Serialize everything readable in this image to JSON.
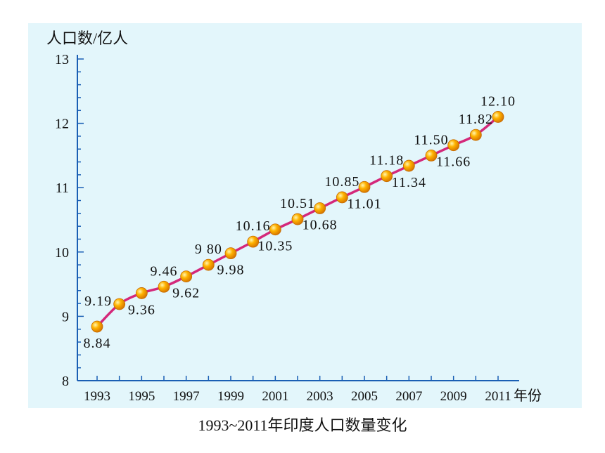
{
  "caption": "1993~2011年印度人口数量变化",
  "colors": {
    "background": "#e3f6fb",
    "axis": "#1a5fb4",
    "line": "#d4287a",
    "marker": "#f5a300",
    "text": "#111111"
  },
  "chart_data": {
    "type": "line",
    "title": "",
    "xlabel": "年份",
    "ylabel": "人口数/亿人",
    "xlim": [
      1993,
      2011
    ],
    "ylim": [
      8,
      13
    ],
    "x_ticks": [
      "1993",
      "1995",
      "1997",
      "1999",
      "2001",
      "2003",
      "2005",
      "2007",
      "2009",
      "2011"
    ],
    "y_ticks": [
      "8",
      "9",
      "10",
      "11",
      "12",
      "13"
    ],
    "grid": false,
    "legend": "none",
    "series": [
      {
        "x": [
          1993,
          1994,
          1995,
          1996,
          1997,
          1998,
          1999,
          2000,
          2001,
          2002,
          2003,
          2004,
          2005,
          2006,
          2007,
          2008,
          2009,
          2010,
          2011
        ],
        "y": [
          8.84,
          9.19,
          9.36,
          9.46,
          9.62,
          9.8,
          9.98,
          10.16,
          10.35,
          10.51,
          10.68,
          10.85,
          11.01,
          11.18,
          11.34,
          11.5,
          11.66,
          11.82,
          12.1
        ]
      }
    ],
    "data_labels": [
      "8.84",
      "9.19",
      "9.36",
      "9.46",
      "9.62",
      "9 80",
      "9.98",
      "10.16",
      "10.35",
      "10.51",
      "10.68",
      "10.85",
      "11.01",
      "11.18",
      "11.34",
      "11.50",
      "11.66",
      "11.82",
      "12.10"
    ]
  }
}
